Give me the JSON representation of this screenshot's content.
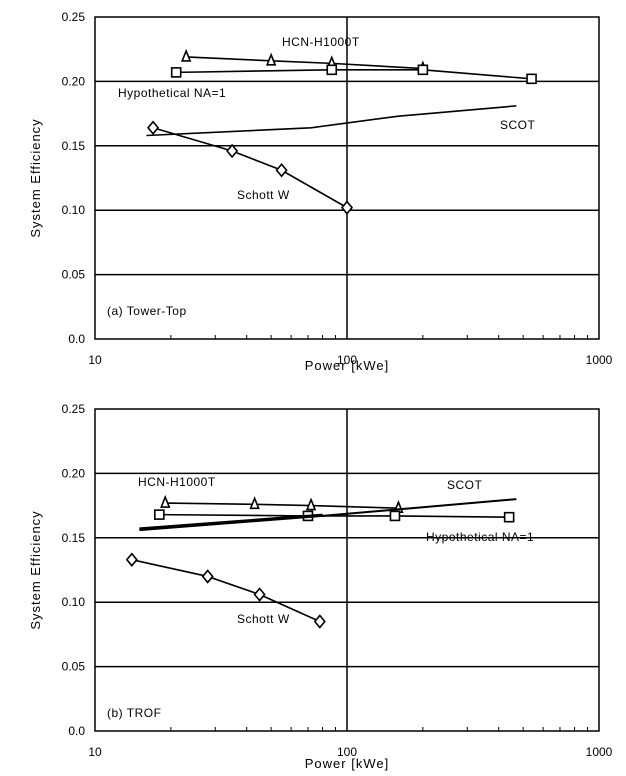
{
  "chart_data": [
    {
      "type": "line",
      "title": "(a) Tower-Top",
      "xlabel": "Power [kWe]",
      "ylabel": "System Efficiency",
      "x_scale": "log",
      "xlim": [
        10,
        1000
      ],
      "ylim": [
        0.0,
        0.25
      ],
      "x_ticks": [
        "10",
        "100",
        "1000"
      ],
      "y_ticks": [
        "0.0",
        "0.05",
        "0.10",
        "0.15",
        "0.20",
        "0.25"
      ],
      "grid": "horizontal at y ticks, vertical at x=100",
      "series": [
        {
          "name": "HCN-H1000T",
          "marker": "triangle",
          "x": [
            23,
            50,
            87,
            200
          ],
          "y": [
            0.219,
            0.216,
            0.214,
            0.21
          ]
        },
        {
          "name": "Hypothetical NA=1",
          "marker": "square",
          "x": [
            21,
            87,
            200,
            540
          ],
          "y": [
            0.207,
            0.209,
            0.209,
            0.202
          ]
        },
        {
          "name": "SCOT",
          "marker": "none",
          "x": [
            16,
            72,
            160,
            470
          ],
          "y": [
            0.158,
            0.164,
            0.173,
            0.181
          ]
        },
        {
          "name": "Schott W",
          "marker": "diamond",
          "x": [
            17,
            35,
            55,
            100
          ],
          "y": [
            0.164,
            0.146,
            0.131,
            0.102
          ]
        }
      ]
    },
    {
      "type": "line",
      "title": "(b) TROF",
      "xlabel": "Power [kWe]",
      "ylabel": "System Efficiency",
      "x_scale": "log",
      "xlim": [
        10,
        1000
      ],
      "ylim": [
        0.0,
        0.25
      ],
      "x_ticks": [
        "10",
        "100",
        "1000"
      ],
      "y_ticks": [
        "0.0",
        "0.05",
        "0.10",
        "0.15",
        "0.20",
        "0.25"
      ],
      "grid": "horizontal at y ticks, vertical at x=100",
      "series": [
        {
          "name": "HCN-H1000T",
          "marker": "triangle",
          "x": [
            19,
            43,
            72,
            160
          ],
          "y": [
            0.177,
            0.176,
            0.175,
            0.173
          ]
        },
        {
          "name": "Hypothetical NA=1",
          "marker": "square",
          "x": [
            18,
            70,
            155,
            440
          ],
          "y": [
            0.168,
            0.167,
            0.167,
            0.166
          ]
        },
        {
          "name": "SCOT",
          "marker": "none",
          "x": [
            15,
            80,
            470
          ],
          "y": [
            0.156,
            0.167,
            0.18
          ]
        },
        {
          "name": "Schott W",
          "marker": "diamond",
          "x": [
            14,
            28,
            45,
            78
          ],
          "y": [
            0.133,
            0.12,
            0.106,
            0.085
          ]
        }
      ]
    }
  ]
}
